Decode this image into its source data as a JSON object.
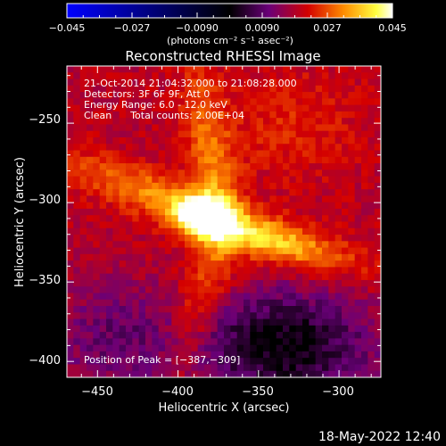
{
  "colorbar": {
    "ticks": [
      "−0.045",
      "−0.027",
      "−0.0090",
      "0.0090",
      "0.027",
      "0.045"
    ],
    "unit_label": "(photons cm⁻² s⁻¹ asec⁻²)",
    "range": [
      -0.045,
      0.045
    ],
    "colormap": [
      "#0000ff",
      "#000000",
      "#6a0078",
      "#d40000",
      "#ff8c00",
      "#ffff40",
      "#ffffff"
    ]
  },
  "chart_data": {
    "type": "heatmap",
    "title": "Reconstructed RHESSI Image",
    "xlabel": "Heliocentric X (arcsec)",
    "ylabel": "Heliocentric Y (arcsec)",
    "xlim": [
      -469,
      -274
    ],
    "ylim": [
      -410,
      -214
    ],
    "x_ticks": [
      -450,
      -400,
      -350,
      -300
    ],
    "y_ticks": [
      -250,
      -300,
      -350,
      -400
    ],
    "x_tick_labels": [
      "−450",
      "−400",
      "−350",
      "−300"
    ],
    "y_tick_labels": [
      "−250",
      "−300",
      "−350",
      "−400"
    ],
    "info": [
      "21-Oct-2014 21:04:32.000 to 21:08:28.000",
      "Detectors: 3F 6F 9F, Att 0",
      "Energy Range: 6.0 - 12.0 keV",
      "Clean      Total counts: 2.00E+04"
    ],
    "peak_label": "Position of Peak = [−387,−309]",
    "peak": [
      -387,
      -309
    ]
  },
  "footer": {
    "timestamp": "18-May-2022 12:40"
  }
}
